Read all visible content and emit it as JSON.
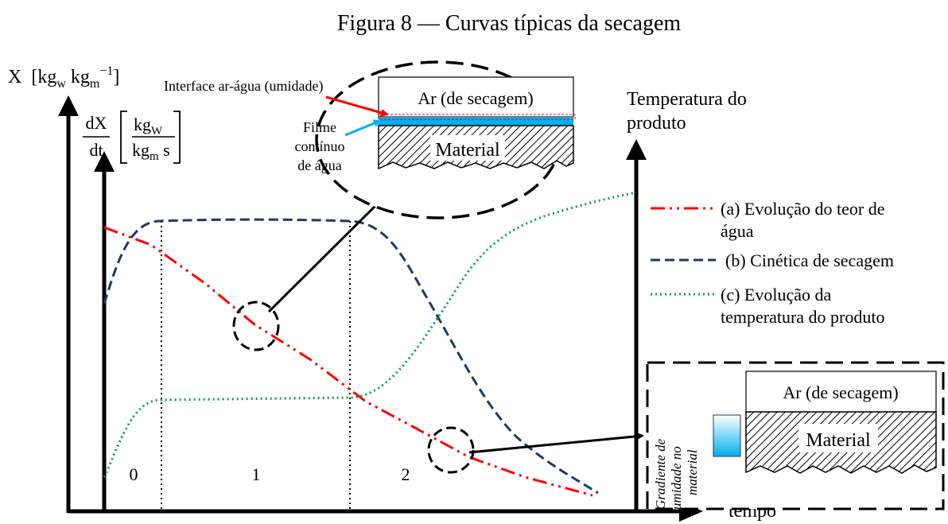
{
  "figure": {
    "title": "Figura 8 — Curvas típicas da secagem"
  },
  "axes": {
    "y_left_main": "X",
    "y_left_unit_open": "[kg",
    "y_left_unit_w": "w",
    "y_left_unit_mid": " kg",
    "y_left_unit_m": "m",
    "y_left_unit_exp": "−1",
    "y_left_unit_close": "]",
    "rate_num": "dX",
    "rate_den": "dt",
    "rate_unit_num": "kg",
    "rate_unit_num_sub": "W",
    "rate_unit_den": "kg",
    "rate_unit_den_sub": "m",
    "rate_unit_den_s": " s",
    "y_right_line1": "Temperatura do",
    "y_right_line2": "produto",
    "x_label": "tempo"
  },
  "periods": [
    "0",
    "1",
    "2"
  ],
  "legend": {
    "a_line1": "(a) Evolução do teor de",
    "a_line2": "água",
    "b_line1": "(b) Cinética de secagem",
    "c_line1": "(c) Evolução da",
    "c_line2": "temperatura do produto"
  },
  "inset_top": {
    "interface_label": "Interface ar-água (umidade)",
    "air_label": "Ar (de secagem)",
    "film_line1": "Filme",
    "film_line2": "contínuo",
    "film_line3": "de água",
    "material_label": "Material"
  },
  "inset_bottom": {
    "air_label": "Ar (de secagem)",
    "material_label": "Material",
    "gradient_line1": "Gradiente de",
    "gradient_line2": "umidade no",
    "gradient_line3": "material"
  },
  "colors": {
    "water_content": "#ff0000",
    "drying_kinetics": "#1f3864",
    "product_temperature": "#00a050",
    "water_film": "#00b0f0",
    "interface_arrow": "#ff0000",
    "film_arrow": "#00b0f0"
  }
}
